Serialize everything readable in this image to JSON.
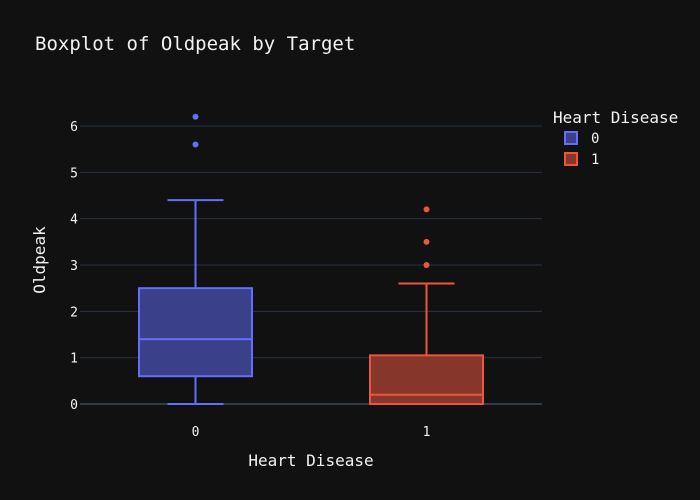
{
  "chart_data": {
    "type": "box",
    "title": "Boxplot of Oldpeak by Target",
    "xlabel": "Heart Disease",
    "ylabel": "Oldpeak",
    "categories": [
      "0",
      "1"
    ],
    "ylim": [
      -0.3,
      6.8
    ],
    "yticks": [
      0,
      1,
      2,
      3,
      4,
      5,
      6
    ],
    "grid": true,
    "legend": {
      "title": "Heart Disease",
      "position": "top-right"
    },
    "series": [
      {
        "name": "0",
        "category": "0",
        "color": "#636efa",
        "fill": "#3a408a",
        "lower_whisker": 0,
        "q1": 0.6,
        "median": 1.4,
        "q3": 2.5,
        "upper_whisker": 4.4,
        "outliers": [
          5.6,
          6.2
        ]
      },
      {
        "name": "1",
        "category": "1",
        "color": "#ef553b",
        "fill": "#86362a",
        "lower_whisker": 0,
        "q1": 0,
        "median": 0.2,
        "q3": 1.05,
        "upper_whisker": 2.6,
        "outliers": [
          3.0,
          3.5,
          4.2
        ]
      }
    ]
  }
}
